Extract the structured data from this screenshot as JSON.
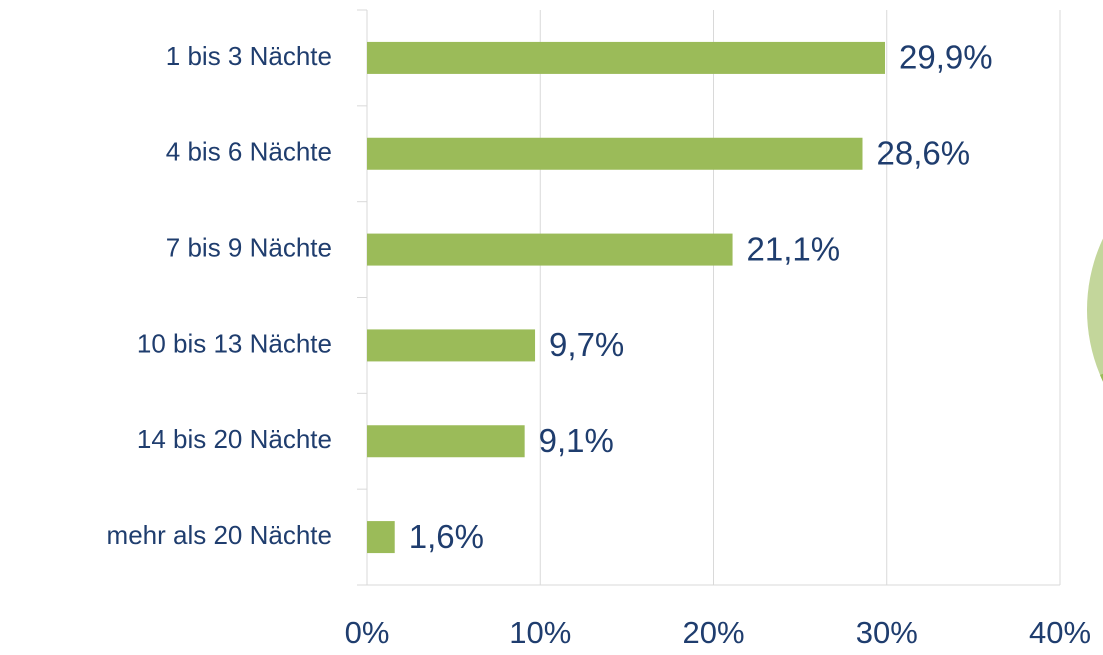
{
  "chart_data": {
    "type": "bar",
    "orientation": "horizontal",
    "categories": [
      "1 bis 3 Nächte",
      "4 bis 6 Nächte",
      "7 bis 9 Nächte",
      "10 bis 13 Nächte",
      "14 bis 20 Nächte",
      "mehr als 20 Nächte"
    ],
    "values": [
      29.9,
      28.6,
      21.1,
      9.7,
      9.1,
      1.6
    ],
    "value_labels": [
      "29,9%",
      "28,6%",
      "21,1%",
      "9,7%",
      "9,1%",
      "1,6%"
    ],
    "color": "#9bbb59",
    "xlim": [
      0,
      40
    ],
    "xticks": [
      {
        "value": 0,
        "label": "0%"
      },
      {
        "value": 10,
        "label": "10%"
      },
      {
        "value": 20,
        "label": "20%"
      },
      {
        "value": 30,
        "label": "30%"
      },
      {
        "value": 40,
        "label": "40%"
      }
    ],
    "grid": true
  }
}
